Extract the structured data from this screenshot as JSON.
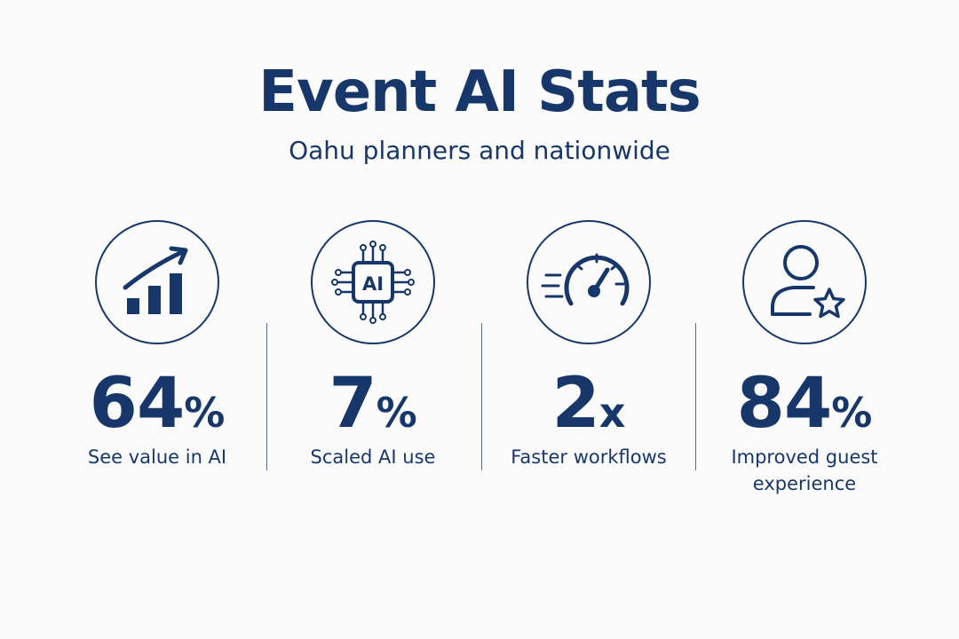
{
  "header": {
    "title": "Event AI Stats",
    "subtitle": "Oahu planners and nationwide"
  },
  "stats": [
    {
      "icon": "growth-chart-icon",
      "number": "64",
      "unit": "%",
      "label": "See value in AI"
    },
    {
      "icon": "ai-chip-icon",
      "number": "7",
      "unit": "%",
      "label": "Scaled AI use",
      "icon_text": "AI"
    },
    {
      "icon": "speedometer-icon",
      "number": "2",
      "unit": "x",
      "label": "Faster workflows"
    },
    {
      "icon": "user-star-icon",
      "number": "84",
      "unit": "%",
      "label": "Improved guest experience"
    }
  ],
  "colors": {
    "primary": "#17376b",
    "background": "#fbfbfb",
    "divider": "#5b6f93"
  }
}
